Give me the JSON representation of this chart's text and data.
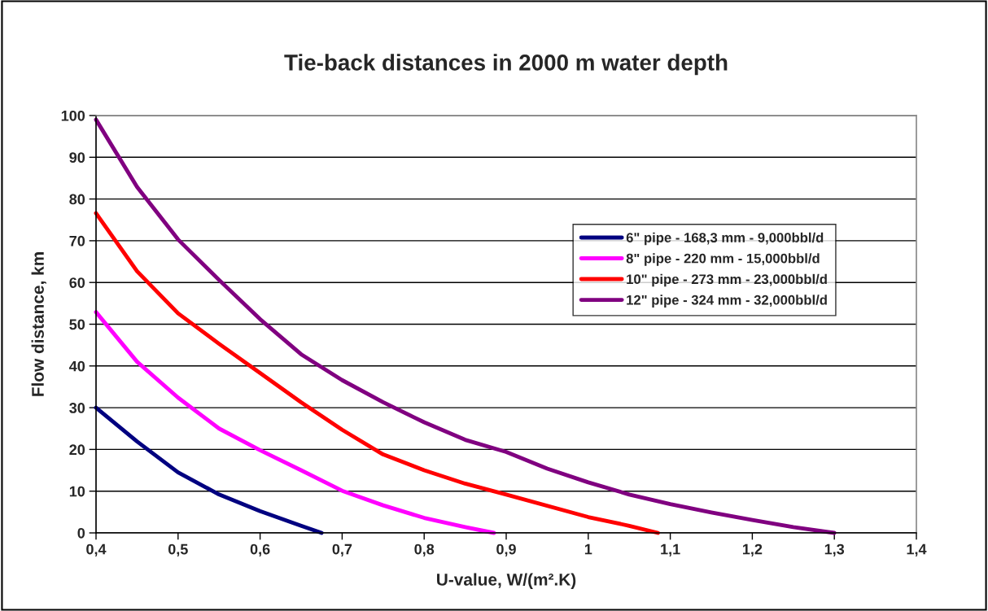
{
  "chart_data": {
    "type": "line",
    "title": "Tie-back distances in 2000 m water depth",
    "xlabel": "U-value, W/(m².K)",
    "ylabel": "Flow distance, km",
    "xlim": [
      0.4,
      1.4
    ],
    "xticks": [
      {
        "value": 0.4,
        "label": "0,4"
      },
      {
        "value": 0.5,
        "label": "0,5"
      },
      {
        "value": 0.6,
        "label": "0,6"
      },
      {
        "value": 0.7,
        "label": "0,7"
      },
      {
        "value": 0.8,
        "label": "0,8"
      },
      {
        "value": 0.9,
        "label": "0,9"
      },
      {
        "value": 1.0,
        "label": "1"
      },
      {
        "value": 1.1,
        "label": "1,1"
      },
      {
        "value": 1.2,
        "label": "1,2"
      },
      {
        "value": 1.3,
        "label": "1,3"
      },
      {
        "value": 1.4,
        "label": "1,4"
      }
    ],
    "ylim": [
      0,
      100
    ],
    "yticks": [
      0,
      10,
      20,
      30,
      40,
      50,
      60,
      70,
      80,
      90,
      100
    ],
    "grid": "y",
    "legend": "right",
    "marker": "none",
    "line_style": "solid",
    "series": [
      {
        "name": "6\" pipe - 168,3 mm - 9,000bbl/d",
        "color": "#000080",
        "x": [
          0.4,
          0.45,
          0.5,
          0.55,
          0.6,
          0.65,
          0.675
        ],
        "values": [
          30,
          21.9,
          14.5,
          9.2,
          5.2,
          1.7,
          0
        ]
      },
      {
        "name": "8\" pipe - 220 mm - 15,000bbl/d",
        "color": "#ff00ff",
        "x": [
          0.4,
          0.45,
          0.5,
          0.55,
          0.6,
          0.65,
          0.7,
          0.75,
          0.8,
          0.85,
          0.885
        ],
        "values": [
          52.9,
          41,
          32.4,
          25,
          19.8,
          15,
          10.1,
          6.6,
          3.6,
          1.4,
          0
        ]
      },
      {
        "name": "10\" pipe - 273 mm - 23,000bbl/d",
        "color": "#ff0000",
        "x": [
          0.4,
          0.45,
          0.5,
          0.55,
          0.6,
          0.65,
          0.7,
          0.75,
          0.8,
          0.85,
          0.9,
          1.0,
          1.05,
          1.085
        ],
        "values": [
          76.6,
          62.7,
          52.6,
          45.3,
          38.3,
          31.3,
          24.7,
          18.8,
          15,
          11.8,
          9.2,
          3.8,
          1.7,
          0
        ]
      },
      {
        "name": "12\" pipe - 324 mm - 32,000bbl/d",
        "color": "#800080",
        "x": [
          0.4,
          0.45,
          0.5,
          0.55,
          0.6,
          0.65,
          0.7,
          0.75,
          0.8,
          0.85,
          0.9,
          0.95,
          1.0,
          1.05,
          1.1,
          1.15,
          1.2,
          1.25,
          1.3
        ],
        "values": [
          99,
          82.9,
          70.3,
          60.6,
          51.2,
          42.8,
          36.6,
          31.3,
          26.5,
          22.3,
          19.4,
          15.4,
          12.1,
          9.2,
          6.9,
          4.9,
          3.1,
          1.4,
          0
        ]
      }
    ]
  }
}
